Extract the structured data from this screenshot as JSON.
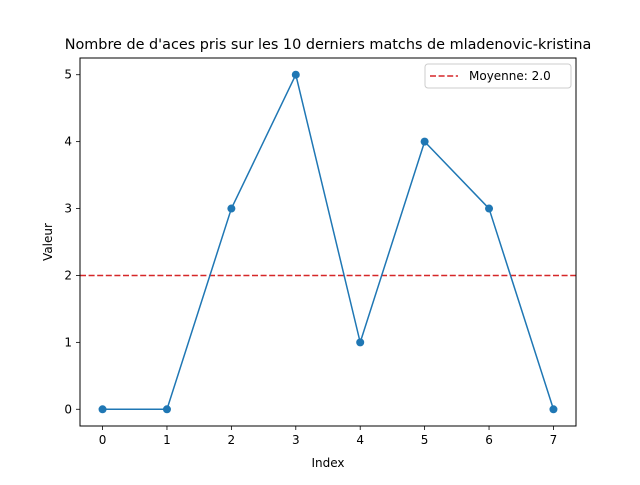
{
  "chart_data": {
    "type": "line",
    "title": "Nombre de d'aces pris sur les 10 derniers matchs de mladenovic-kristina",
    "xlabel": "Index",
    "ylabel": "Valeur",
    "x": [
      0,
      1,
      2,
      3,
      4,
      5,
      6,
      7
    ],
    "series": [
      {
        "values": [
          0,
          0,
          3,
          5,
          1,
          4,
          3,
          0
        ],
        "color": "#1f77b4",
        "marker": "circle"
      }
    ],
    "reference_line": {
      "value": 2.0,
      "label": "Moyenne: 2.0",
      "color": "#d62728",
      "style": "dashed"
    },
    "xlim": [
      -0.35,
      7.35
    ],
    "ylim": [
      -0.25,
      5.25
    ],
    "xticks": [
      0,
      1,
      2,
      3,
      4,
      5,
      6,
      7
    ],
    "yticks": [
      0,
      1,
      2,
      3,
      4,
      5
    ],
    "grid": false,
    "legend_position": "top-right"
  }
}
